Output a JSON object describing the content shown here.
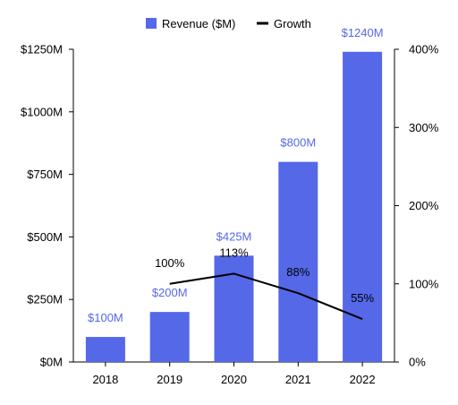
{
  "chart_data": {
    "type": "bar",
    "categories": [
      "2018",
      "2019",
      "2020",
      "2021",
      "2022"
    ],
    "series": [
      {
        "name": "Revenue ($M)",
        "type": "bar",
        "axis": "left",
        "values": [
          100,
          200,
          425,
          800,
          1240
        ],
        "labels": [
          "$100M",
          "$200M",
          "$425M",
          "$800M",
          "$1240M"
        ]
      },
      {
        "name": "Growth",
        "type": "line",
        "axis": "right",
        "values": [
          null,
          100,
          113,
          88,
          55
        ],
        "labels": [
          "",
          "100%",
          "113%",
          "88%",
          "55%"
        ]
      }
    ],
    "y_left": {
      "ylim": [
        0,
        1250
      ],
      "ticks": [
        0,
        250,
        500,
        750,
        1000,
        1250
      ],
      "tick_labels": [
        "$0M",
        "$250M",
        "$500M",
        "$750M",
        "$1000M",
        "$1250M"
      ]
    },
    "y_right": {
      "ylim": [
        0,
        400
      ],
      "ticks": [
        0,
        100,
        200,
        300,
        400
      ],
      "tick_labels": [
        "0%",
        "100%",
        "200%",
        "300%",
        "400%"
      ]
    },
    "legend": {
      "position": "top-center",
      "items": [
        {
          "label": "Revenue ($M)",
          "marker": "square"
        },
        {
          "label": "Growth",
          "marker": "line"
        }
      ]
    },
    "grid": false,
    "colors": {
      "bar": "#5468E8",
      "bar_label": "#5468E8",
      "line": "#000000",
      "axis": "#000000"
    }
  }
}
